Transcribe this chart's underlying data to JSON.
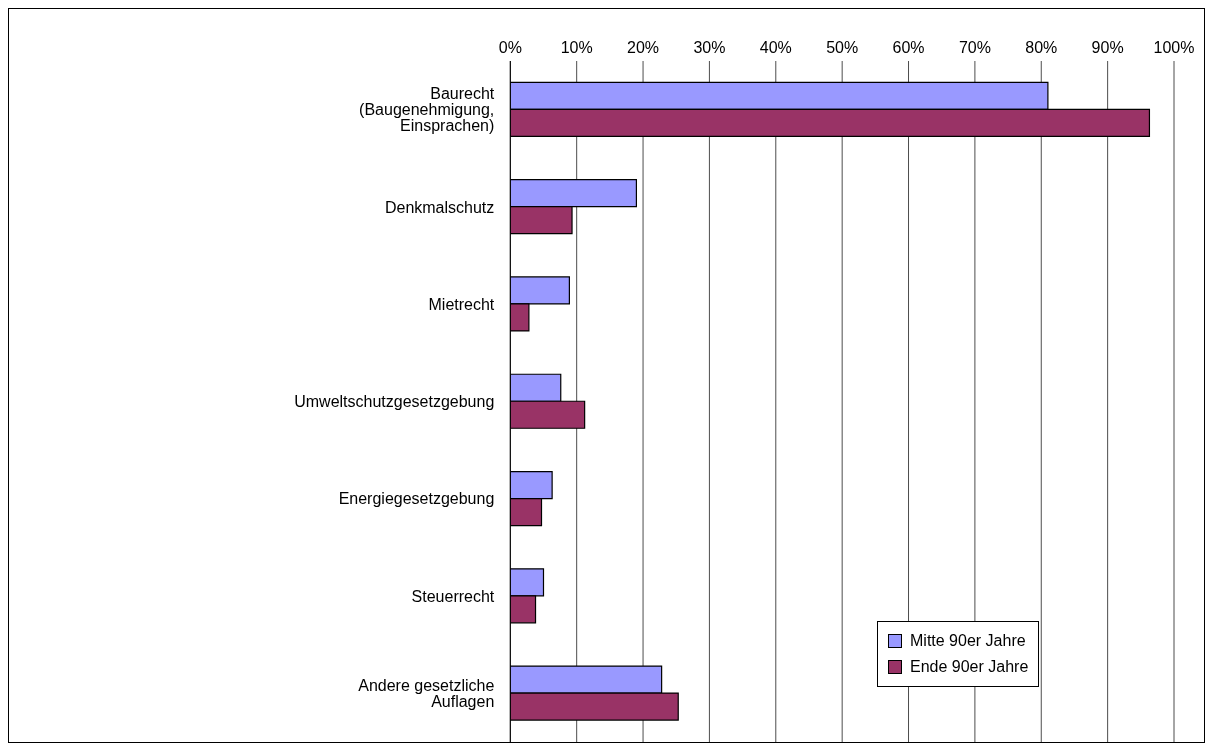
{
  "chart_data": {
    "type": "bar",
    "orientation": "horizontal",
    "categories": [
      "Baurecht (Baugenehmigung, Einsprachen)",
      "Denkmalschutz",
      "Mietrecht",
      "Umweltschutzgesetzgebung",
      "Energiegesetzgebung",
      "Steuerrecht",
      "Andere gesetzliche Auflagen"
    ],
    "series": [
      {
        "name": "Mitte 90er Jahre",
        "color": "#9999ff",
        "values": [
          81.0,
          19.0,
          8.9,
          7.6,
          6.3,
          5.0,
          22.8
        ]
      },
      {
        "name": "Ende 90er Jahre",
        "color": "#993366",
        "values": [
          96.3,
          9.3,
          2.8,
          11.2,
          4.7,
          3.8,
          25.3
        ]
      }
    ],
    "xlim": [
      0,
      100
    ],
    "xticks": [
      {
        "value": 0,
        "label": "0%"
      },
      {
        "value": 10,
        "label": "10%"
      },
      {
        "value": 20,
        "label": "20%"
      },
      {
        "value": 30,
        "label": "30%"
      },
      {
        "value": 40,
        "label": "40%"
      },
      {
        "value": 50,
        "label": "50%"
      },
      {
        "value": 60,
        "label": "60%"
      },
      {
        "value": 70,
        "label": "70%"
      },
      {
        "value": 80,
        "label": "80%"
      },
      {
        "value": 90,
        "label": "90%"
      },
      {
        "value": 100,
        "label": "100%"
      }
    ],
    "grid": "x",
    "legend": "bottom right"
  }
}
